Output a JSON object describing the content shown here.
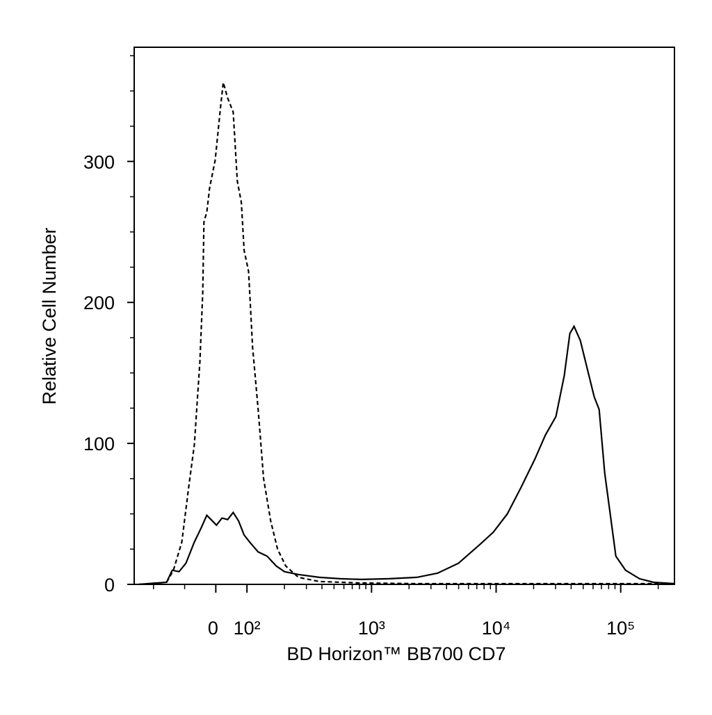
{
  "chart_data": {
    "type": "line",
    "xlabel": "BD Horizon™ BB700 CD7",
    "ylabel": "Relative Cell Number",
    "xscale": "biexponential",
    "xlim": [
      -262,
      270000
    ],
    "xticks": [
      {
        "value": 0,
        "label": "0"
      },
      {
        "value": 100,
        "label": "10²"
      },
      {
        "value": 1000,
        "label": "10³"
      },
      {
        "value": 10000,
        "label": "10⁴"
      },
      {
        "value": 100000,
        "label": "10⁵"
      }
    ],
    "xminor_ticks": [
      -200,
      -100,
      200,
      300,
      400,
      500,
      600,
      700,
      800,
      900,
      2000,
      3000,
      4000,
      5000,
      6000,
      7000,
      8000,
      9000,
      20000,
      30000,
      40000,
      50000,
      60000,
      70000,
      80000,
      90000,
      200000
    ],
    "ylim": [
      0,
      381
    ],
    "yticks": [
      0,
      100,
      200,
      300
    ],
    "yminor_ticks": [
      25,
      50,
      75,
      125,
      150,
      175,
      225,
      250,
      275,
      325,
      350,
      375
    ],
    "series": [
      {
        "color": "#000000",
        "linestyle": "dashed",
        "x": [
          -247,
          -158,
          -136,
          -109,
          -87,
          -69,
          -51,
          -42,
          -38,
          -29,
          -20,
          -2,
          16,
          24,
          38,
          56,
          69,
          82,
          91,
          103,
          111,
          123,
          136,
          155,
          176,
          205,
          259,
          381,
          825,
          2307,
          8350,
          30200,
          109400,
          269000
        ],
        "values": [
          0,
          1.5,
          10,
          30,
          69,
          99,
          158,
          207,
          257,
          264,
          281,
          301,
          340,
          356,
          345,
          335,
          286,
          271,
          237,
          222,
          168,
          124,
          75,
          45,
          25,
          13,
          5,
          2,
          1,
          0.5,
          0.5,
          0.5,
          0.5,
          0.5
        ]
      },
      {
        "color": "#000000",
        "linestyle": "solid",
        "x": [
          -247,
          -158,
          -140,
          -118,
          -96,
          -69,
          -47,
          -29,
          -11,
          2,
          20,
          38,
          56,
          73,
          91,
          105,
          123,
          145,
          172,
          200,
          259,
          381,
          561,
          825,
          1380,
          2307,
          3395,
          4990,
          7340,
          9500,
          12300,
          15900,
          20500,
          24900,
          30200,
          35200,
          39100,
          42200,
          47400,
          53900,
          61300,
          67100,
          74400,
          82400,
          91400,
          109400,
          141600,
          183200,
          269000
        ],
        "values": [
          0,
          1.5,
          10,
          9,
          15,
          30,
          40,
          49,
          45,
          42,
          47,
          46,
          51,
          45,
          35,
          30,
          23,
          20,
          13,
          9,
          7,
          5,
          4,
          3.5,
          4,
          5,
          8,
          15,
          28,
          37,
          50,
          69,
          89,
          106,
          119,
          148,
          178,
          183,
          173,
          153,
          133,
          124,
          79,
          50,
          20,
          10,
          4,
          1.5,
          0.5
        ]
      }
    ]
  }
}
